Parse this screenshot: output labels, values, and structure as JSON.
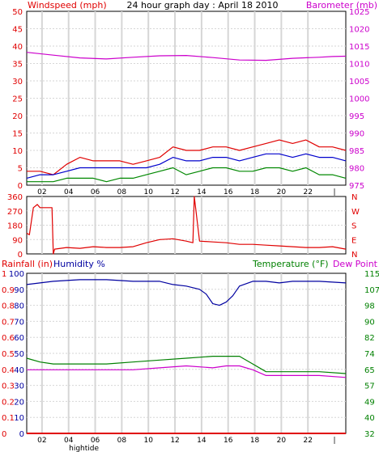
{
  "colors": {
    "windspeed": "#e00000",
    "windspeed_avg": "#0000cc",
    "wind_gust_low": "#008800",
    "barometer": "#cc00cc",
    "direction": "#e00000",
    "rainfall": "#e00000",
    "humidity": "#0000a0",
    "temperature": "#008000",
    "dewpoint": "#cc00cc",
    "grid": "#d6d6d6",
    "frame": "#000000"
  },
  "chart_data": [
    {
      "type": "line",
      "title": "24 hour graph day : April 18 2010",
      "y_left_label": "Windspeed (mph)",
      "y_right_label": "Barometer (mb)",
      "x_ticks": [
        "02",
        "04",
        "06",
        "08",
        "10",
        "12",
        "14",
        "16",
        "18",
        "20",
        "22",
        "|"
      ],
      "x_under_label": "hightide",
      "y_left_ticks": [
        "0",
        "5",
        "10",
        "15",
        "20",
        "25",
        "30",
        "35",
        "40",
        "45",
        "50"
      ],
      "y_left_range": [
        0,
        50
      ],
      "y_right_ticks": [
        "975",
        "980",
        "985",
        "990",
        "995",
        "1000",
        "1005",
        "1010",
        "1015",
        "1020",
        "1025"
      ],
      "y_right_range": [
        975,
        1025
      ],
      "x_range": [
        0,
        24
      ],
      "grid": true,
      "series": [
        {
          "key": "windspeed",
          "x": [
            0,
            1,
            2,
            3,
            4,
            5,
            6,
            7,
            8,
            9,
            10,
            11,
            12,
            13,
            14,
            15,
            16,
            17,
            18,
            19,
            20,
            21,
            22,
            23,
            24
          ],
          "values": [
            4,
            4,
            3,
            6,
            8,
            7,
            7,
            7,
            6,
            7,
            8,
            11,
            10,
            10,
            11,
            11,
            10,
            11,
            12,
            13,
            12,
            13,
            11,
            11,
            10
          ]
        },
        {
          "key": "windspeed_avg",
          "x": [
            0,
            1,
            2,
            3,
            4,
            5,
            6,
            7,
            8,
            9,
            10,
            11,
            12,
            13,
            14,
            15,
            16,
            17,
            18,
            19,
            20,
            21,
            22,
            23,
            24
          ],
          "values": [
            2,
            3,
            3,
            4,
            5,
            5,
            5,
            5,
            5,
            5,
            6,
            8,
            7,
            7,
            8,
            8,
            7,
            8,
            9,
            9,
            8,
            9,
            8,
            8,
            7
          ]
        },
        {
          "key": "wind_gust_low",
          "x": [
            0,
            1,
            2,
            3,
            4,
            5,
            6,
            7,
            8,
            9,
            10,
            11,
            12,
            13,
            14,
            15,
            16,
            17,
            18,
            19,
            20,
            21,
            22,
            23,
            24
          ],
          "values": [
            1,
            1,
            1,
            2,
            2,
            2,
            1,
            2,
            2,
            3,
            4,
            5,
            3,
            4,
            5,
            5,
            4,
            4,
            5,
            5,
            4,
            5,
            3,
            3,
            2
          ]
        },
        {
          "key": "barometer",
          "axis": "right",
          "x": [
            0,
            2,
            4,
            6,
            8,
            10,
            12,
            14,
            16,
            18,
            20,
            22,
            23,
            24
          ],
          "values": [
            1013.2,
            1012.4,
            1011.6,
            1011.3,
            1011.8,
            1012.2,
            1012.3,
            1011.7,
            1011.0,
            1010.9,
            1011.5,
            1011.8,
            1012.0,
            1012.1
          ]
        }
      ]
    },
    {
      "type": "line",
      "y_left_ticks": [
        "360",
        "270",
        "180",
        "90",
        "0"
      ],
      "y_left_range": [
        0,
        360
      ],
      "y_right_ticks": [
        "N",
        "W",
        "S",
        "E",
        "N"
      ],
      "x_range": [
        0,
        24
      ],
      "grid": true,
      "series": [
        {
          "key": "direction",
          "x": [
            0,
            0.2,
            0.5,
            0.8,
            1,
            1.2,
            1.5,
            1.9,
            2.0,
            2.1,
            3,
            4,
            5,
            6,
            7,
            8,
            9,
            10,
            11,
            12,
            12.5,
            12.6,
            13,
            14,
            15,
            16,
            17,
            18,
            19,
            20,
            21,
            22,
            23,
            24
          ],
          "values": [
            130,
            120,
            290,
            310,
            290,
            290,
            290,
            290,
            0,
            30,
            40,
            35,
            45,
            40,
            40,
            45,
            70,
            90,
            95,
            80,
            70,
            360,
            80,
            75,
            70,
            60,
            60,
            55,
            50,
            45,
            40,
            40,
            45,
            30
          ]
        }
      ]
    },
    {
      "type": "line",
      "y_left_label": "Rainfall (in)",
      "y_left_label_2": "Humidity %",
      "y_right_label": "Temperature (°F)",
      "y_right_label_2": "Dew Point",
      "x_ticks": [
        "02",
        "04",
        "06",
        "08",
        "10",
        "12",
        "14",
        "16",
        "18",
        "20",
        "22",
        "|"
      ],
      "x_under_label": "hightide",
      "y_left_ticks": [
        "0",
        "0.1",
        "0.2",
        "0.3",
        "0.4",
        "0.5",
        "0.6",
        "0.7",
        "0.8",
        "0.9",
        "1"
      ],
      "y_left_ticks_b": [
        "0",
        "10",
        "20",
        "30",
        "40",
        "50",
        "60",
        "70",
        "80",
        "90",
        "100"
      ],
      "y_left_range": [
        0,
        100
      ],
      "y_right_ticks": [
        "32",
        "40",
        "49",
        "57",
        "65",
        "74",
        "82",
        "90",
        "98",
        "107",
        "115"
      ],
      "y_right_range": [
        32,
        115
      ],
      "x_range": [
        0,
        24
      ],
      "grid": true,
      "series": [
        {
          "key": "rainfall",
          "x": [
            0,
            24
          ],
          "values": [
            0,
            0
          ]
        },
        {
          "key": "humidity",
          "x": [
            0,
            1,
            2,
            4,
            6,
            8,
            10,
            11,
            12,
            13,
            13.5,
            14,
            14.5,
            15,
            15.5,
            16,
            17,
            18,
            19,
            20,
            22,
            24
          ],
          "values": [
            93,
            94,
            95,
            96,
            96,
            95,
            95,
            93,
            92,
            90,
            87,
            81,
            80,
            82,
            86,
            92,
            95,
            95,
            94,
            95,
            95,
            94
          ]
        },
        {
          "key": "temperature",
          "axis": "right",
          "x": [
            0,
            1,
            2,
            4,
            6,
            8,
            10,
            12,
            14,
            15,
            16,
            17,
            18,
            20,
            22,
            24
          ],
          "values": [
            71,
            69,
            68,
            68,
            68,
            69,
            70,
            71,
            72,
            72,
            72,
            68,
            64,
            64,
            64,
            63
          ]
        },
        {
          "key": "dewpoint",
          "axis": "right",
          "x": [
            0,
            1,
            2,
            4,
            6,
            8,
            10,
            12,
            14,
            15,
            16,
            17,
            18,
            20,
            22,
            24
          ],
          "values": [
            65,
            65,
            65,
            65,
            65,
            65,
            66,
            67,
            66,
            67,
            67,
            65,
            62,
            62,
            62,
            61
          ]
        }
      ]
    }
  ]
}
